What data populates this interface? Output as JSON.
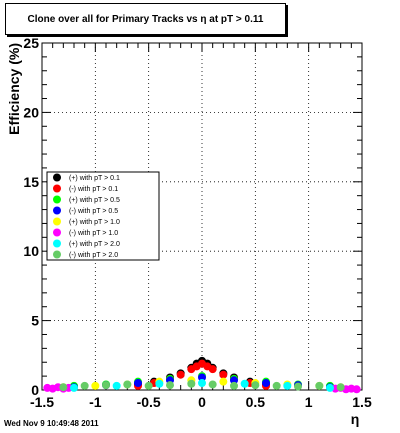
{
  "title": "Clone  over all for Primary Tracks vs    η at pT > 0.11",
  "footer": "Wed Nov  9 10:49:48 2011",
  "chart_data": {
    "type": "scatter",
    "title": "Clone  over all for Primary Tracks vs    η at pT > 0.11",
    "xlabel": "η",
    "ylabel": "Efficiency (%)",
    "xlim": [
      -1.5,
      1.5
    ],
    "ylim": [
      0,
      25
    ],
    "xticks": [
      -1.5,
      -1,
      -0.5,
      0,
      0.5,
      1,
      1.5
    ],
    "xtick_labels": [
      "-1.5",
      "-1",
      "-0.5",
      "0",
      "0.5",
      "1",
      "1.5"
    ],
    "yticks": [
      0,
      5,
      10,
      15,
      20,
      25
    ],
    "ytick_labels": [
      "0",
      "5",
      "10",
      "15",
      "20",
      "25"
    ],
    "grid": true,
    "legend_position": "center-left",
    "series": [
      {
        "name": "(+) with pT > 0.1",
        "color": "#000000",
        "x": [
          -0.6,
          -0.45,
          -0.3,
          -0.2,
          -0.1,
          -0.05,
          0,
          0.05,
          0.1,
          0.2,
          0.3,
          0.45,
          0.6
        ],
        "y": [
          0.4,
          0.6,
          0.9,
          1.2,
          1.6,
          1.9,
          2.1,
          1.9,
          1.6,
          1.2,
          0.9,
          0.6,
          0.4
        ]
      },
      {
        "name": "(-) with pT > 0.1",
        "color": "#ff0000",
        "x": [
          -0.6,
          -0.45,
          -0.3,
          -0.2,
          -0.1,
          -0.05,
          0,
          0.05,
          0.1,
          0.2,
          0.3,
          0.45,
          0.6
        ],
        "y": [
          0.3,
          0.5,
          0.8,
          1.1,
          1.5,
          1.7,
          1.9,
          1.7,
          1.5,
          1.1,
          0.8,
          0.5,
          0.3
        ]
      },
      {
        "name": "(+) with pT > 0.5",
        "color": "#00ff00",
        "x": [
          -1.2,
          -0.9,
          -0.6,
          -0.3,
          0,
          0.3,
          0.6,
          0.9,
          1.2
        ],
        "y": [
          0.3,
          0.4,
          0.6,
          0.8,
          1.0,
          0.8,
          0.6,
          0.4,
          0.3
        ]
      },
      {
        "name": "(-) with pT > 0.5",
        "color": "#0000ff",
        "x": [
          -1.2,
          -0.9,
          -0.6,
          -0.3,
          0,
          0.3,
          0.6,
          0.9,
          1.2
        ],
        "y": [
          0.2,
          0.35,
          0.5,
          0.7,
          0.9,
          0.7,
          0.5,
          0.35,
          0.2
        ]
      },
      {
        "name": "(+) with pT > 1.0",
        "color": "#ffff00",
        "x": [
          -1.3,
          -1.0,
          -0.7,
          -0.4,
          -0.1,
          0.2,
          0.5,
          0.8,
          1.1,
          1.3
        ],
        "y": [
          0.2,
          0.3,
          0.4,
          0.6,
          0.7,
          0.6,
          0.5,
          0.4,
          0.3,
          0.2
        ]
      },
      {
        "name": "(-) with pT > 1.0",
        "color": "#ff00ff",
        "x": [
          -1.45,
          -1.4,
          -1.35,
          -1.3,
          -1.25,
          1.25,
          1.3,
          1.35,
          1.4,
          1.45
        ],
        "y": [
          0.15,
          0.1,
          0.2,
          0.1,
          0.15,
          0.1,
          0.15,
          0.05,
          0.1,
          0.05
        ]
      },
      {
        "name": "(+) with pT > 2.0",
        "color": "#00ffff",
        "x": [
          -1.2,
          -0.8,
          -0.4,
          0,
          0.4,
          0.8,
          1.2
        ],
        "y": [
          0.15,
          0.3,
          0.45,
          0.5,
          0.45,
          0.3,
          0.15
        ]
      },
      {
        "name": "(-) with pT > 2.0",
        "color": "#66cc66",
        "x": [
          -1.3,
          -1.1,
          -0.9,
          -0.7,
          -0.5,
          -0.3,
          -0.1,
          0.1,
          0.3,
          0.5,
          0.7,
          0.9,
          1.1,
          1.3
        ],
        "y": [
          0.2,
          0.3,
          0.35,
          0.4,
          0.3,
          0.35,
          0.45,
          0.4,
          0.3,
          0.35,
          0.3,
          0.25,
          0.3,
          0.2
        ]
      }
    ]
  }
}
